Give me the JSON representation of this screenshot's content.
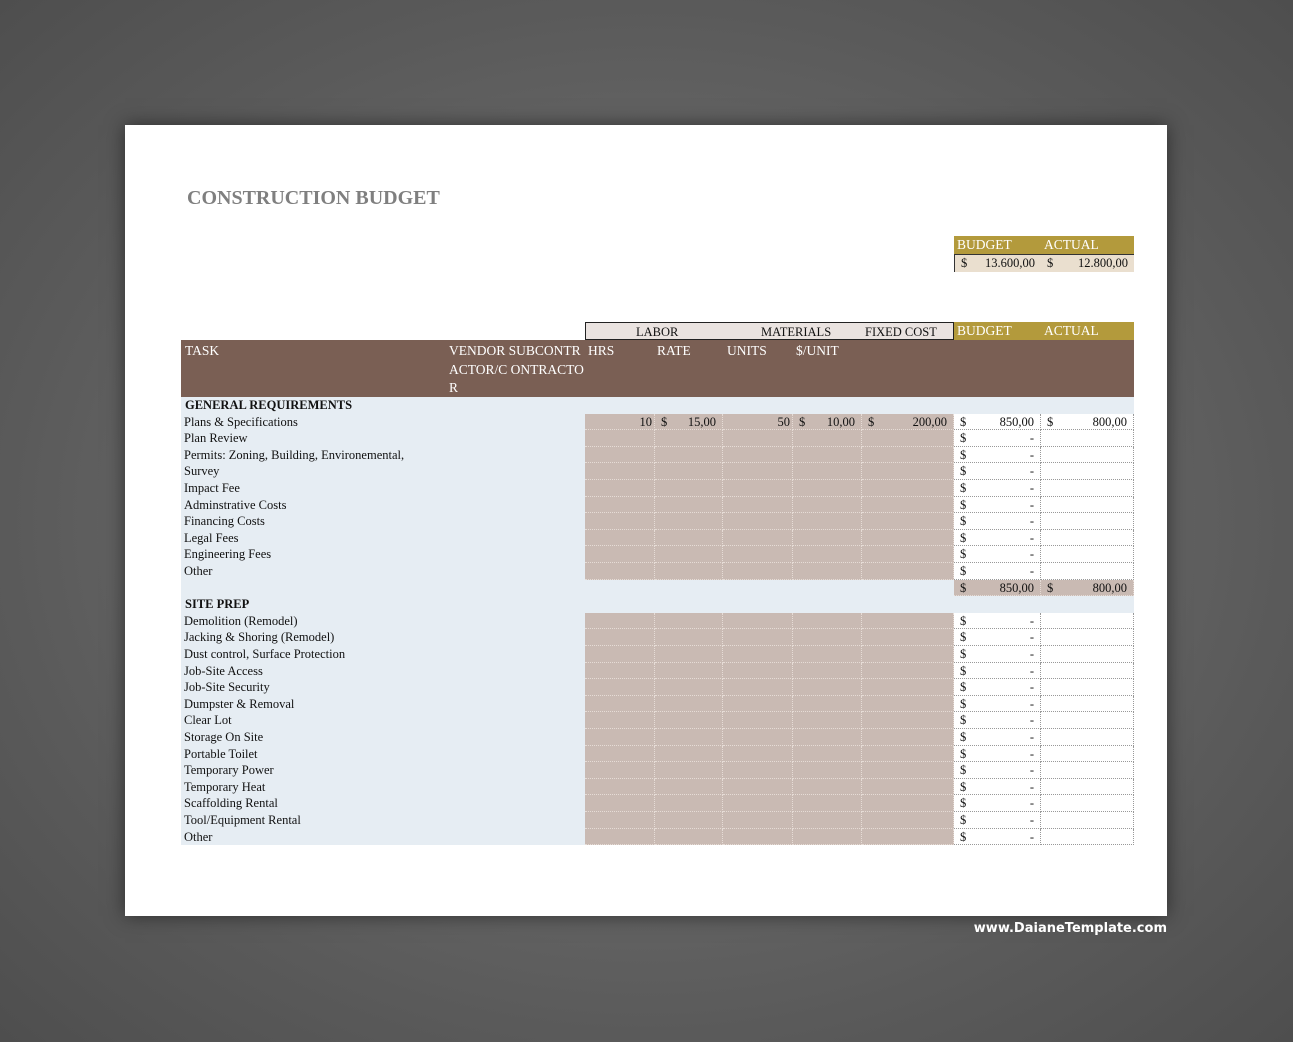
{
  "title": "CONSTRUCTION BUDGET",
  "summary": {
    "budget_label": "BUDGET",
    "actual_label": "ACTUAL",
    "currency": "$",
    "budget": "13.600,00",
    "actual": "12.800,00"
  },
  "groups": {
    "labor": "LABOR",
    "materials": "MATERIALS",
    "fixed": "FIXED COST",
    "budget": "BUDGET",
    "actual": "ACTUAL"
  },
  "columns": {
    "task": "TASK",
    "vendor": "VENDOR SUBCONTRACTOR/C ONTRACTOR",
    "hrs": "HRS",
    "rate": "RATE",
    "units": "UNITS",
    "per_unit": "$/UNIT"
  },
  "sections": [
    {
      "name": "GENERAL REQUIREMENTS",
      "rows": [
        {
          "task": "Plans & Specifications",
          "hrs": "10",
          "rate": "15,00",
          "units": "50",
          "per_unit": "10,00",
          "fixed": "200,00",
          "budget": "850,00",
          "actual": "800,00"
        },
        {
          "task": "Plan Review",
          "budget": "-"
        },
        {
          "task": "Permits: Zoning, Building, Environemental,",
          "budget": "-"
        },
        {
          "task": "Survey",
          "budget": "-"
        },
        {
          "task": "Impact Fee",
          "budget": "-"
        },
        {
          "task": "Adminstrative Costs",
          "budget": "-"
        },
        {
          "task": "Financing Costs",
          "budget": "-"
        },
        {
          "task": "Legal Fees",
          "budget": "-"
        },
        {
          "task": "Engineering Fees",
          "budget": "-"
        },
        {
          "task": "Other",
          "budget": "-"
        }
      ],
      "total": {
        "budget": "850,00",
        "actual": "800,00"
      }
    },
    {
      "name": "SITE PREP",
      "rows": [
        {
          "task": "Demolition (Remodel)",
          "budget": "-"
        },
        {
          "task": "Jacking & Shoring (Remodel)",
          "budget": "-"
        },
        {
          "task": "Dust control, Surface Protection",
          "budget": "-"
        },
        {
          "task": "Job-Site Access",
          "budget": "-"
        },
        {
          "task": "Job-Site Security",
          "budget": "-"
        },
        {
          "task": "Dumpster & Removal",
          "budget": "-"
        },
        {
          "task": "Clear Lot",
          "budget": "-"
        },
        {
          "task": "Storage On Site",
          "budget": "-"
        },
        {
          "task": "Portable Toilet",
          "budget": "-"
        },
        {
          "task": "Temporary Power",
          "budget": "-"
        },
        {
          "task": "Temporary Heat",
          "budget": "-"
        },
        {
          "task": "Scaffolding Rental",
          "budget": "-"
        },
        {
          "task": "Tool/Equipment Rental",
          "budget": "-"
        },
        {
          "task": "Other",
          "budget": "-"
        }
      ]
    }
  ],
  "footer": "www.DaianeTemplate.com",
  "colors": {
    "header_brown": "#7a5f54",
    "gold": "#b39a3c",
    "tan": "#c9bab3",
    "light_blue": "#e6edf3"
  }
}
